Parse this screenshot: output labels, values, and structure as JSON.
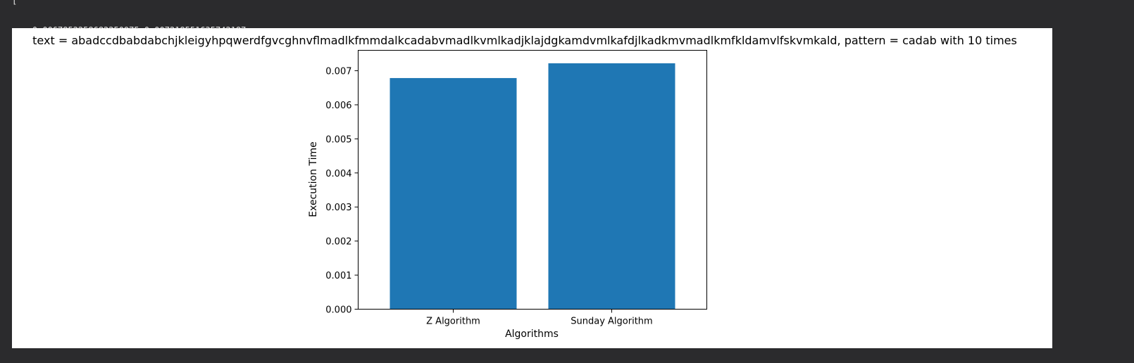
{
  "output": {
    "clipped_line": "[",
    "values_line": "0.0067852258682250975 0.007218551635742187"
  },
  "chart_data": {
    "type": "bar",
    "title": "text = abadccdbabdabchjkleigyhpqwerdfgvcghnvflmadlkfmmdalkcadabvmadlkvmlkadjklajdgkamdvmlkafdjlkadkmvmadlkmfkldamvlfskvmkald, pattern = cadab  with 10 times",
    "xlabel": "Algorithms",
    "ylabel": "Execution Time",
    "categories": [
      "Z Algorithm",
      "Sunday Algorithm"
    ],
    "values": [
      0.0067852258682250975,
      0.007218551635742187
    ],
    "ylim": [
      0,
      0.0076
    ],
    "yticks": [
      0.0,
      0.001,
      0.002,
      0.003,
      0.004,
      0.005,
      0.006,
      0.007
    ],
    "ytick_labels": [
      "0.000",
      "0.001",
      "0.002",
      "0.003",
      "0.004",
      "0.005",
      "0.006",
      "0.007"
    ],
    "bar_color": "#1f77b4",
    "grid": false,
    "legend": false
  }
}
